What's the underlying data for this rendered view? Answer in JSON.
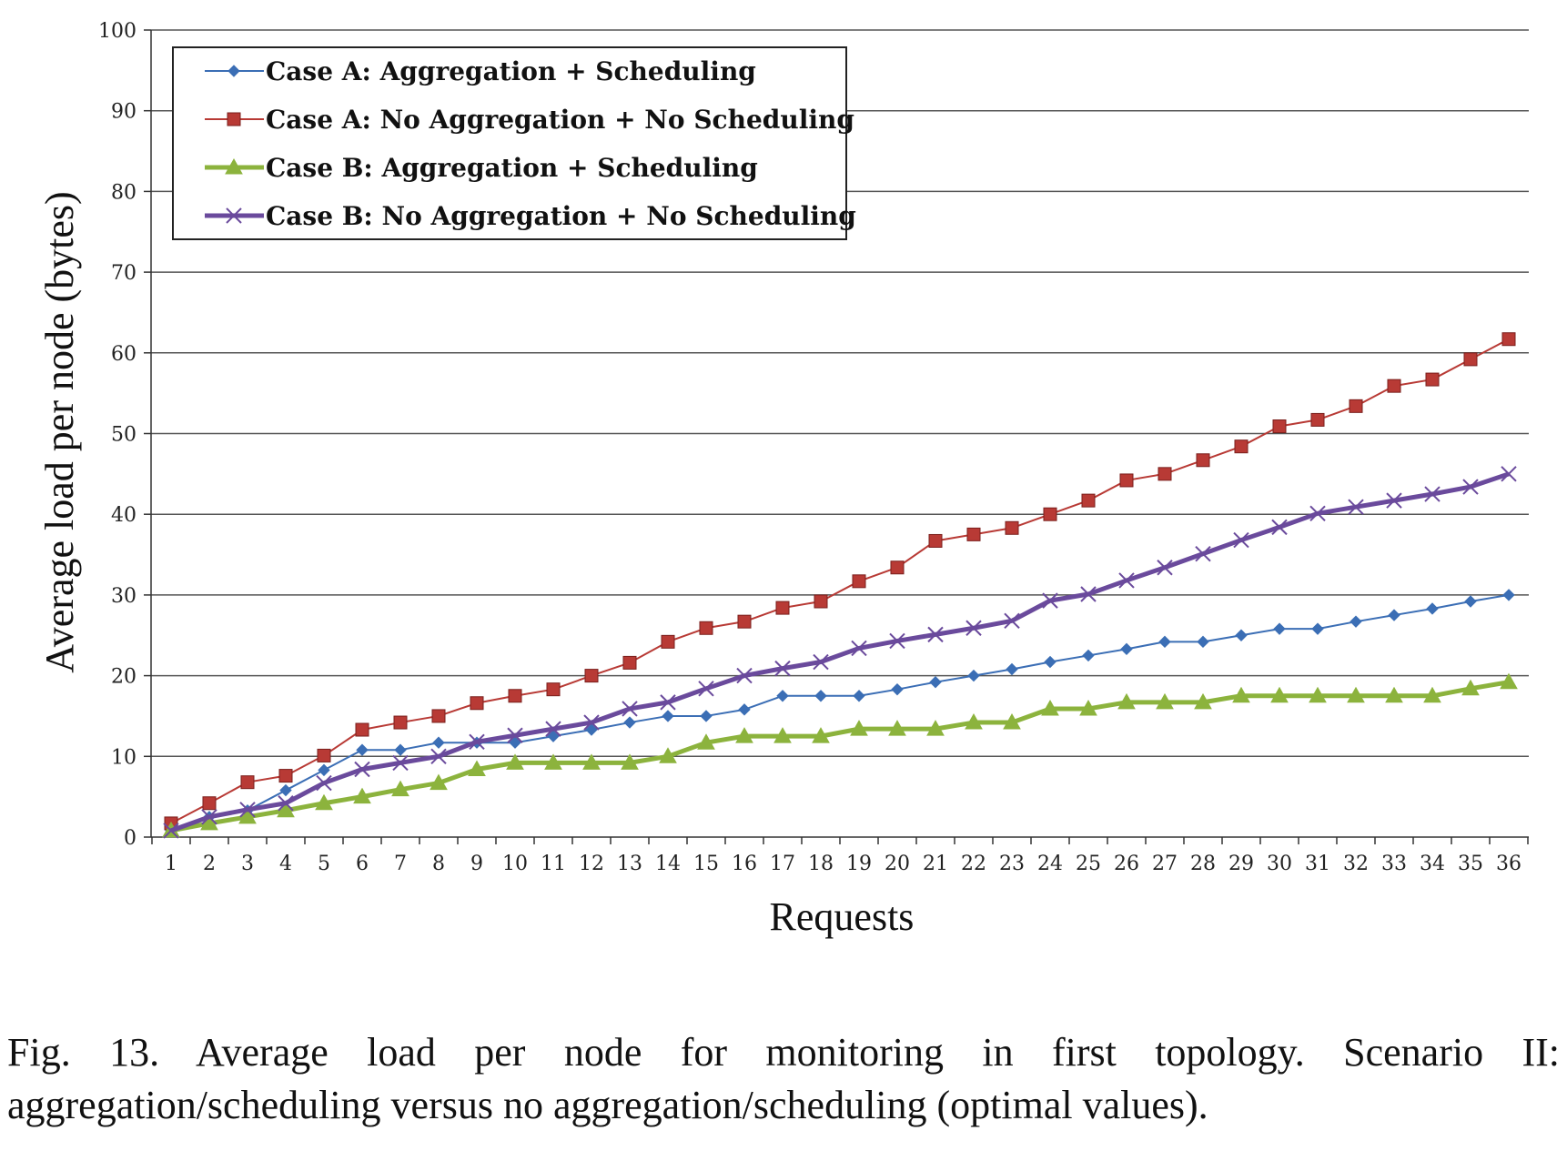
{
  "chart_data": {
    "type": "line",
    "xlabel": "Requests",
    "ylabel": "Average load per node (bytes)",
    "ylim": [
      0,
      100
    ],
    "yticks": [
      0,
      10,
      20,
      30,
      40,
      50,
      60,
      70,
      80,
      90,
      100
    ],
    "grid": "horizontal",
    "legend_position": "top-left",
    "categories": [
      "1",
      "2",
      "3",
      "4",
      "5",
      "6",
      "7",
      "8",
      "9",
      "10",
      "11",
      "12",
      "13",
      "14",
      "15",
      "16",
      "17",
      "18",
      "19",
      "20",
      "21",
      "22",
      "23",
      "24",
      "25",
      "26",
      "27",
      "28",
      "29",
      "30",
      "31",
      "32",
      "33",
      "34",
      "35",
      "36"
    ],
    "series": [
      {
        "name": "Case A: Aggregation + Scheduling",
        "color": "#3b6eb5",
        "marker": "diamond",
        "values": [
          0.8,
          2.5,
          3.3,
          5.8,
          8.3,
          10.8,
          10.8,
          11.7,
          11.7,
          11.7,
          12.5,
          13.3,
          14.2,
          15.0,
          15.0,
          15.8,
          17.5,
          17.5,
          17.5,
          18.3,
          19.2,
          20.0,
          20.8,
          21.7,
          22.5,
          23.3,
          24.2,
          24.2,
          25.0,
          25.8,
          25.8,
          26.7,
          27.5,
          28.3,
          29.2,
          30.0
        ]
      },
      {
        "name": "Case A: No Aggregation + No Scheduling",
        "color": "#b83a35",
        "marker": "square",
        "values": [
          1.7,
          4.2,
          6.8,
          7.6,
          10.1,
          13.3,
          14.2,
          15.0,
          16.6,
          17.5,
          18.3,
          20.0,
          21.6,
          24.2,
          25.9,
          26.7,
          28.4,
          29.2,
          31.7,
          33.4,
          36.7,
          37.5,
          38.3,
          40.0,
          41.7,
          44.2,
          45.0,
          46.7,
          48.4,
          50.9,
          51.7,
          53.4,
          55.9,
          56.7,
          59.2,
          61.7
        ]
      },
      {
        "name": "Case B: Aggregation + Scheduling",
        "color": "#8cb33d",
        "marker": "triangle",
        "values": [
          0.8,
          1.7,
          2.5,
          3.3,
          4.2,
          5.0,
          5.9,
          6.7,
          8.4,
          9.2,
          9.2,
          9.2,
          9.2,
          10.0,
          11.7,
          12.5,
          12.5,
          12.5,
          13.4,
          13.4,
          13.4,
          14.2,
          14.2,
          15.9,
          15.9,
          16.7,
          16.7,
          16.7,
          17.5,
          17.5,
          17.5,
          17.5,
          17.5,
          17.5,
          18.4,
          19.2
        ]
      },
      {
        "name": "Case B: No Aggregation + No Scheduling",
        "color": "#6a4a9c",
        "marker": "x",
        "values": [
          0.8,
          2.5,
          3.4,
          4.2,
          6.7,
          8.4,
          9.2,
          10.0,
          11.8,
          12.6,
          13.4,
          14.2,
          15.9,
          16.7,
          18.4,
          20.0,
          20.9,
          21.7,
          23.4,
          24.3,
          25.1,
          25.9,
          26.8,
          29.3,
          30.1,
          31.8,
          33.4,
          35.1,
          36.8,
          38.4,
          40.1,
          40.9,
          41.7,
          42.5,
          43.4,
          45.0
        ]
      }
    ]
  },
  "caption": "Fig. 13.  Average load per node for monitoring in first topology. Scenario II: aggregation/scheduling versus no aggregation/scheduling (optimal values)."
}
